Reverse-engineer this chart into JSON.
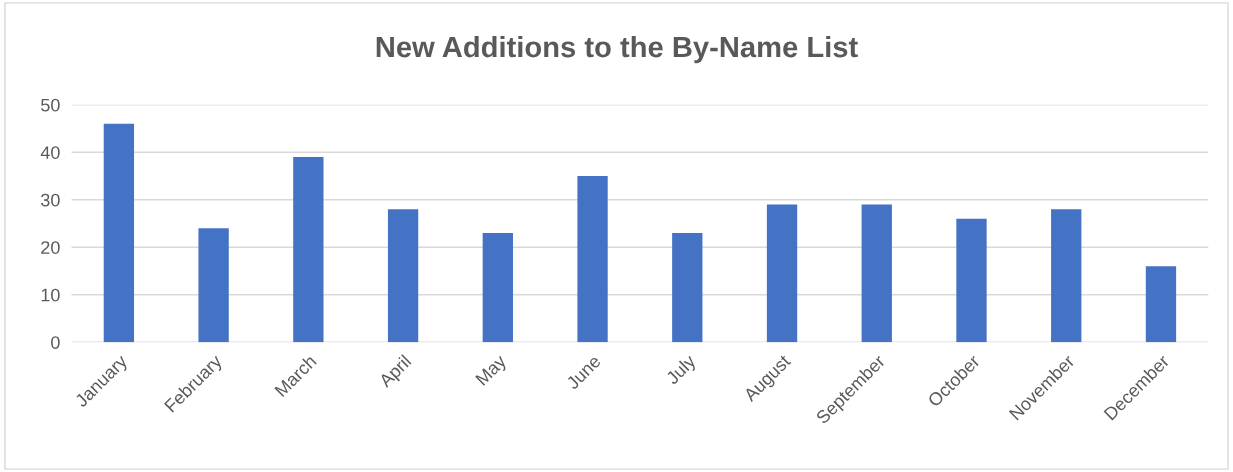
{
  "chart_data": {
    "type": "bar",
    "title": "New Additions to the By-Name List",
    "categories": [
      "January",
      "February",
      "March",
      "April",
      "May",
      "June",
      "July",
      "August",
      "September",
      "October",
      "November",
      "December"
    ],
    "values": [
      46,
      24,
      39,
      28,
      23,
      35,
      23,
      29,
      29,
      26,
      28,
      16
    ],
    "color": "#4472c4",
    "ylim": [
      0,
      50
    ],
    "yticks": [
      0,
      10,
      20,
      30,
      40,
      50
    ],
    "grid": "y"
  }
}
